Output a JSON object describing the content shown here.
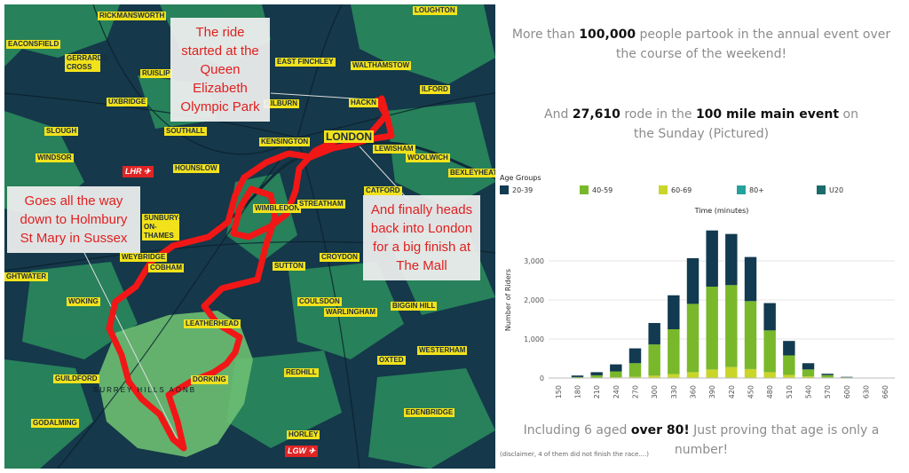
{
  "map": {
    "places": [
      {
        "id": "rickmansworth",
        "label": "RICKMANSWORTH"
      },
      {
        "id": "loughton",
        "label": "LOUGHTON"
      },
      {
        "id": "beaconsfield",
        "label": "EACONSFIELD"
      },
      {
        "id": "gerrards-cross",
        "label": "GERRARDS CROSS"
      },
      {
        "id": "ruislip",
        "label": "RUISLIP"
      },
      {
        "id": "east-finchley",
        "label": "EAST FINCHLEY"
      },
      {
        "id": "walthamstow",
        "label": "WALTHAMSTOW"
      },
      {
        "id": "uxbridge",
        "label": "UXBRIDGE"
      },
      {
        "id": "kilburn",
        "label": "KILBURN"
      },
      {
        "id": "hackney",
        "label": "HACKN"
      },
      {
        "id": "ilford",
        "label": "ILFORD"
      },
      {
        "id": "slough",
        "label": "SLOUGH"
      },
      {
        "id": "southall",
        "label": "SOUTHALL"
      },
      {
        "id": "kensington",
        "label": "KENSINGTON"
      },
      {
        "id": "london",
        "label": "LONDON"
      },
      {
        "id": "woolwich",
        "label": "WOOLWICH"
      },
      {
        "id": "windsor",
        "label": "WINDSOR"
      },
      {
        "id": "hounslow",
        "label": "HOUNSLOW"
      },
      {
        "id": "lewisham",
        "label": "LEWISHAM"
      },
      {
        "id": "bexleyheath",
        "label": "BEXLEYHEATH"
      },
      {
        "id": "catford",
        "label": "CATFORD"
      },
      {
        "id": "wimbledon",
        "label": "WIMBLEDON"
      },
      {
        "id": "streatham",
        "label": "STREATHAM"
      },
      {
        "id": "sunbury",
        "label": "SUNBURY-ON-THAMES"
      },
      {
        "id": "weybridge",
        "label": "WEYBRIDGE"
      },
      {
        "id": "croydon",
        "label": "CROYDON"
      },
      {
        "id": "sutton",
        "label": "SUTTON"
      },
      {
        "id": "woking-west",
        "label": "GHTWATER"
      },
      {
        "id": "cobham",
        "label": "COBHAM"
      },
      {
        "id": "biggin-hill",
        "label": "BIGGIN HILL"
      },
      {
        "id": "woking",
        "label": "WOKING"
      },
      {
        "id": "coulsdon",
        "label": "COULSDON"
      },
      {
        "id": "warlingham",
        "label": "WARLINGHAM"
      },
      {
        "id": "leatherhead",
        "label": "LEATHERHEAD"
      },
      {
        "id": "westerham",
        "label": "WESTERHAM"
      },
      {
        "id": "oxted",
        "label": "OXTED"
      },
      {
        "id": "redhill",
        "label": "REDHILL"
      },
      {
        "id": "guildford",
        "label": "GUILDFORD"
      },
      {
        "id": "dorking",
        "label": "DORKING"
      },
      {
        "id": "edenbridge",
        "label": "EDENBRIDGE"
      },
      {
        "id": "godalming",
        "label": "GODALMING"
      },
      {
        "id": "horley",
        "label": "HORLEY"
      }
    ],
    "airports": [
      {
        "id": "lhr",
        "label": "LHR ✈"
      },
      {
        "id": "lgw",
        "label": "LGW ✈"
      }
    ],
    "area_label": "SURREY HILLS AONB",
    "callouts": {
      "start": "The ride started at the Queen Elizabeth Olympic Park",
      "holmbury": "Goes all the way down to Holmbury St Mary in Sussex",
      "finish": "And finally heads back into London for a big finish at The Mall"
    }
  },
  "right": {
    "line1_pre": "More than ",
    "line1_num": "100,000",
    "line1_post": " people partook in the annual event over the course of the weekend!",
    "line2_pre": "And ",
    "line2_num": "27,610",
    "line2_mid": " rode in the ",
    "line2_event": "100 mile main event",
    "line2_post": " on the Sunday (Pictured)",
    "line3_pre": "Including 6 aged ",
    "line3_em": "over 80!",
    "line3_post": " Just proving that age is only a number!",
    "disclaimer": "(disclaimer, 4 of them did not finish the race....)"
  },
  "legend": {
    "title": "Age Groups",
    "items": [
      {
        "label": "20-39",
        "color": "#123a50"
      },
      {
        "label": "40-59",
        "color": "#79b82a"
      },
      {
        "label": "60-69",
        "color": "#c9d629"
      },
      {
        "label": "80+",
        "color": "#23a39b"
      },
      {
        "label": "U20",
        "color": "#1a6b6b"
      }
    ]
  },
  "chart_data": {
    "type": "bar",
    "title": "Time (minutes)",
    "xlabel": "",
    "ylabel": "Number of Riders",
    "categories": [
      "150",
      "180",
      "210",
      "240",
      "270",
      "300",
      "330",
      "360",
      "390",
      "420",
      "450",
      "480",
      "510",
      "540",
      "570",
      "600",
      "630",
      "660"
    ],
    "ylim": [
      0,
      4000
    ],
    "yticks": [
      0,
      1000,
      2000,
      3000
    ],
    "ytick_labels": [
      "0",
      "1,000",
      "2,000",
      "3,000"
    ],
    "stacked": true,
    "series": [
      {
        "name": "60-69",
        "color": "#c9d629",
        "values": [
          0,
          5,
          10,
          20,
          30,
          60,
          100,
          150,
          220,
          280,
          230,
          150,
          80,
          40,
          15,
          5,
          0,
          0
        ]
      },
      {
        "name": "40-59",
        "color": "#79b82a",
        "values": [
          0,
          20,
          60,
          150,
          350,
          800,
          1150,
          1750,
          2120,
          2100,
          1740,
          1070,
          500,
          180,
          60,
          15,
          2,
          0
        ]
      },
      {
        "name": "20-39",
        "color": "#123a50",
        "values": [
          10,
          40,
          80,
          180,
          380,
          550,
          870,
          1170,
          1440,
          1310,
          1130,
          700,
          370,
          160,
          35,
          10,
          3,
          0
        ]
      }
    ],
    "grid": true
  }
}
